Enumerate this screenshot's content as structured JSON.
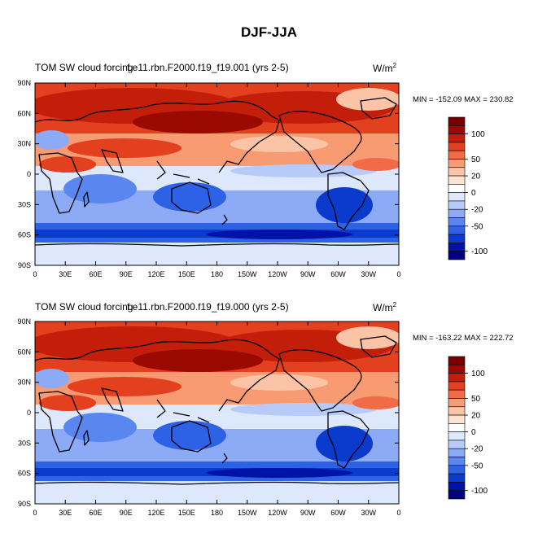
{
  "figure": {
    "title": "DJF-JJA",
    "units_base": "W/m",
    "units_exp": "2"
  },
  "panels": [
    {
      "title_left": "TOM SW cloud forcing",
      "title_center": "f.e11.rbn.F2000.f19_f19.001 (yrs 2-5)",
      "minmax": "MIN = -152.09 MAX = 230.82"
    },
    {
      "title_left": "TOM SW cloud forcing",
      "title_center": "f.e11.rbn.F2000.f19_f19.000 (yrs 2-5)",
      "minmax": "MIN = -163.22 MAX = 222.72"
    }
  ],
  "colors": {
    "levels": [
      "#000080",
      "#0012a8",
      "#0a3bcc",
      "#2e62e6",
      "#5a86f0",
      "#8caaf5",
      "#b8cbf8",
      "#dde8fc",
      "#ffffff",
      "#fde4d2",
      "#fbc4a6",
      "#f89a72",
      "#f26b47",
      "#e2401f",
      "#c21e0a",
      "#9a0a00",
      "#780000"
    ],
    "land": "#000000"
  },
  "chart_data": [
    {
      "type": "heatmap",
      "title": "TOM SW cloud forcing",
      "variable_units": "W/m^2",
      "x_ticks": [
        "0",
        "30E",
        "60E",
        "90E",
        "120E",
        "150E",
        "180",
        "150W",
        "120W",
        "90W",
        "60W",
        "30W",
        "0"
      ],
      "y_ticks": [
        "90N",
        "60N",
        "30N",
        "0",
        "30S",
        "60S",
        "90S"
      ],
      "xlim": [
        0,
        360
      ],
      "ylim": [
        -90,
        90
      ],
      "colorbar_labels": [
        "100",
        "50",
        "20",
        "0",
        "-20",
        "-50",
        "-100"
      ],
      "min": -152.09,
      "max": 230.82
    },
    {
      "type": "heatmap",
      "title": "TOM SW cloud forcing",
      "variable_units": "W/m^2",
      "x_ticks": [
        "0",
        "30E",
        "60E",
        "90E",
        "120E",
        "150E",
        "180",
        "150W",
        "120W",
        "90W",
        "60W",
        "30W",
        "0"
      ],
      "y_ticks": [
        "90N",
        "60N",
        "30N",
        "0",
        "30S",
        "60S",
        "90S"
      ],
      "xlim": [
        0,
        360
      ],
      "ylim": [
        -90,
        90
      ],
      "colorbar_labels": [
        "100",
        "50",
        "20",
        "0",
        "-20",
        "-50",
        "-100"
      ],
      "min": -163.22,
      "max": 222.72
    }
  ]
}
